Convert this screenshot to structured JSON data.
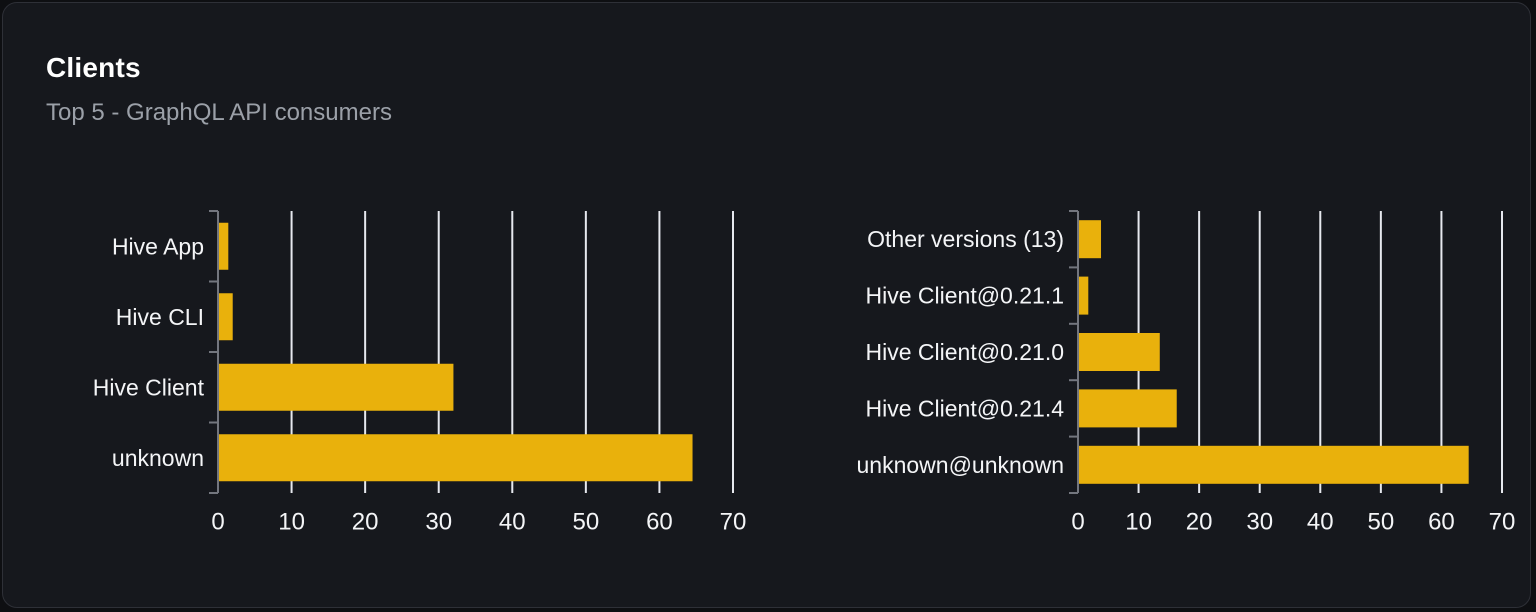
{
  "page": {
    "title": "Clients",
    "subtitle": "Top 5 - GraphQL API consumers"
  },
  "colors": {
    "page_bg": "#0e0f12",
    "card_bg": "#16181d",
    "card_border": "#2e3037",
    "title": "#ffffff",
    "subtitle": "#9ba0a8",
    "bar": "#e9b10c",
    "grid_line": "#e6e8ee",
    "axis_line": "#73767e",
    "tick_label": "#f4f5f7",
    "category_label": "#f4f5f7"
  },
  "chart_data": [
    {
      "type": "bar",
      "orientation": "horizontal",
      "name": "clients-by-name",
      "categories": [
        "Hive App",
        "Hive CLI",
        "Hive Client",
        "unknown"
      ],
      "values": [
        1.4,
        2.0,
        32.0,
        64.5
      ],
      "xlim": [
        0,
        70
      ],
      "xticks": [
        0,
        10,
        20,
        30,
        40,
        50,
        60,
        70
      ],
      "grid": true,
      "legend": false,
      "xlabel": "",
      "ylabel": ""
    },
    {
      "type": "bar",
      "orientation": "horizontal",
      "name": "clients-by-version",
      "categories": [
        "Other versions (13)",
        "Hive Client@0.21.1",
        "Hive Client@0.21.0",
        "Hive Client@0.21.4",
        "unknown@unknown"
      ],
      "values": [
        3.8,
        1.7,
        13.5,
        16.3,
        64.5
      ],
      "xlim": [
        0,
        70
      ],
      "xticks": [
        0,
        10,
        20,
        30,
        40,
        50,
        60,
        70
      ],
      "grid": true,
      "legend": false,
      "xlabel": "",
      "ylabel": ""
    }
  ]
}
